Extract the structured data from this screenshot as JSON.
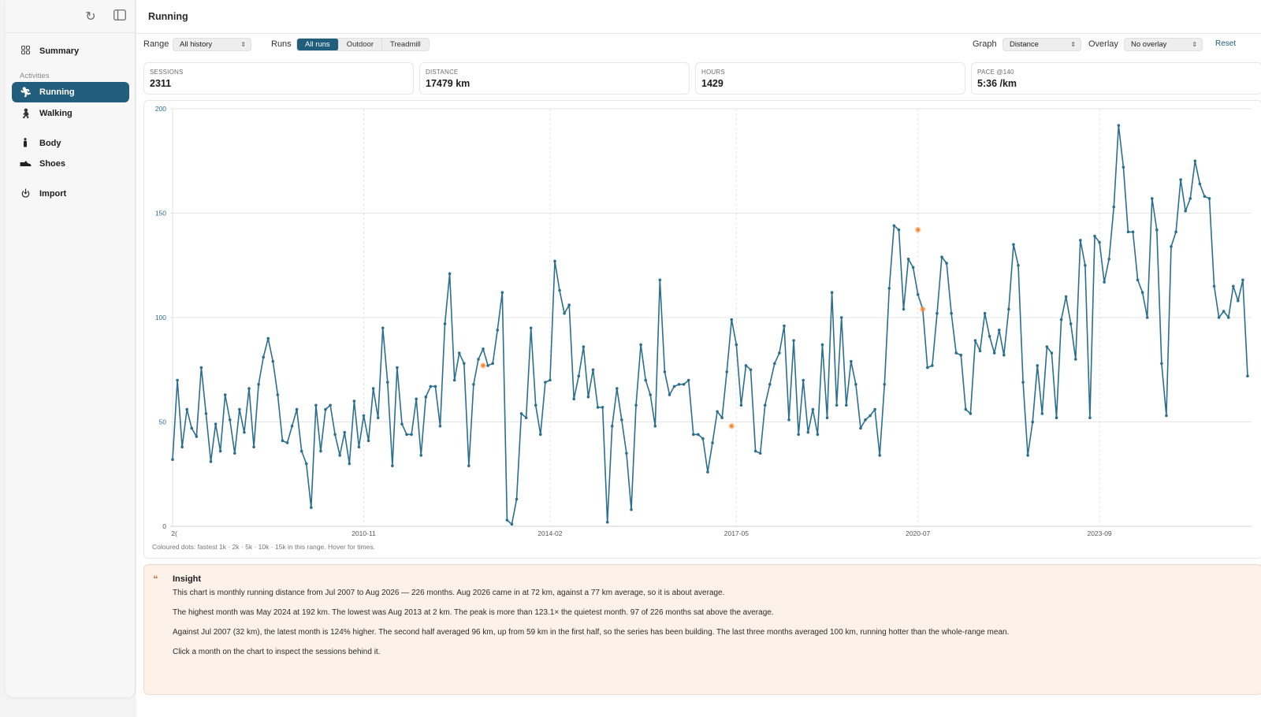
{
  "sidebar": {
    "section_label": "Activities",
    "items": [
      {
        "label": "Summary",
        "icon": "grid-icon"
      },
      {
        "label": "Running",
        "icon": "running-icon",
        "active": true
      },
      {
        "label": "Walking",
        "icon": "walking-icon"
      },
      {
        "label": "Body",
        "icon": "body-icon"
      },
      {
        "label": "Shoes",
        "icon": "shoe-icon"
      },
      {
        "label": "Import",
        "icon": "import-icon"
      }
    ]
  },
  "header": {
    "title": "Running"
  },
  "controls": {
    "range_label": "Range",
    "range_value": "All history",
    "runs_label": "Runs",
    "runs_options": [
      "All runs",
      "Outdoor",
      "Treadmill"
    ],
    "runs_selected": "All runs",
    "graph_label": "Graph",
    "graph_value": "Distance",
    "overlay_label": "Overlay",
    "overlay_value": "No overlay",
    "reset_label": "Reset"
  },
  "stats": [
    {
      "key": "SESSIONS",
      "value": "2311"
    },
    {
      "key": "DISTANCE",
      "value": "17479 km"
    },
    {
      "key": "HOURS",
      "value": "1429"
    },
    {
      "key": "PACE @140",
      "value": "5:36 /km"
    }
  ],
  "chart_note": "Coloured dots: fastest 1k · 2k · 5k · 10k · 15k in this range. Hover for times.",
  "chart_data": {
    "type": "line",
    "ylim": [
      0,
      200
    ],
    "y_ticks": [
      0,
      50,
      100,
      150,
      200
    ],
    "x_ticks": [
      "2(",
      "2010-11",
      "2014-02",
      "2017-05",
      "2020-07",
      "2023-09"
    ],
    "grid": true,
    "colors": {
      "line": "#2b6f8e",
      "highlight": "#f08c3a"
    },
    "series": [
      {
        "values": [
          32,
          70,
          38,
          56,
          47,
          43,
          76,
          54,
          31,
          49,
          36,
          63,
          51,
          35,
          56,
          45,
          66,
          38,
          68,
          81,
          90,
          79,
          63,
          41,
          40,
          48,
          56,
          36,
          30,
          9,
          58,
          36,
          56,
          58,
          44,
          34,
          45,
          30,
          60,
          38,
          53,
          41,
          66,
          52,
          95,
          69,
          29,
          76,
          49,
          44,
          44,
          61,
          34,
          62,
          67,
          67,
          48,
          97,
          121,
          70,
          83,
          78,
          29,
          68,
          80,
          85,
          77,
          78,
          94,
          112,
          3,
          1,
          13,
          54,
          52,
          95,
          58,
          44,
          69,
          70,
          127,
          113,
          102,
          106,
          61,
          72,
          86,
          62,
          75,
          57,
          57,
          2,
          48,
          66,
          51,
          35,
          8,
          58,
          87,
          70,
          63,
          48,
          118,
          74,
          63,
          67,
          68,
          68,
          70,
          44,
          44,
          42,
          26,
          40,
          55,
          52,
          74,
          99,
          87,
          58,
          77,
          75,
          36,
          35,
          58,
          68,
          78,
          83,
          96,
          51,
          89,
          44,
          70,
          45,
          56,
          44,
          87,
          52,
          112,
          58,
          100,
          58,
          79,
          68,
          47,
          51,
          53,
          56,
          34,
          68,
          114,
          144,
          142,
          104,
          128,
          124,
          111,
          104,
          76,
          77,
          102,
          129,
          126,
          102,
          83,
          82,
          56,
          54,
          89,
          84,
          102,
          91,
          83,
          94,
          82,
          104,
          135,
          125,
          69,
          34,
          50,
          77,
          54,
          86,
          83,
          52,
          99,
          110,
          97,
          80,
          137,
          125,
          52,
          139,
          136,
          117,
          128,
          153,
          192,
          172,
          141,
          141,
          118,
          112,
          100,
          157,
          142,
          78,
          53,
          134,
          141,
          166,
          151,
          157,
          175,
          164,
          158,
          157,
          115,
          100,
          103,
          100,
          115,
          108,
          118,
          72
        ],
        "x_start": "2007-07",
        "x_end": "2026-08"
      }
    ],
    "highlighted_points": [
      {
        "month": "2012-12",
        "value": 77
      },
      {
        "month": "2017-04",
        "value": 48
      },
      {
        "month": "2020-07",
        "value": 142
      },
      {
        "month": "2020-08",
        "value": 104
      }
    ]
  },
  "insight": {
    "title": "Insight",
    "lines": [
      "This chart is monthly running distance from Jul 2007 to Aug 2026 — 226 months. Aug 2026 came in at 72 km, against a 77 km average, so it is about average.",
      "The highest month was May 2024 at 192 km. The lowest was Aug 2013 at 2 km. The peak is more than 123.1× the quietest month. 97 of 226 months sat above the average.",
      "Against Jul 2007 (32 km), the latest month is 124% higher. The second half averaged 96 km, up from 59 km in the first half, so the series has been building. The last three months averaged 100 km, running hotter than the whole-range mean.",
      "Click a month on the chart to inspect the sessions behind it."
    ]
  }
}
